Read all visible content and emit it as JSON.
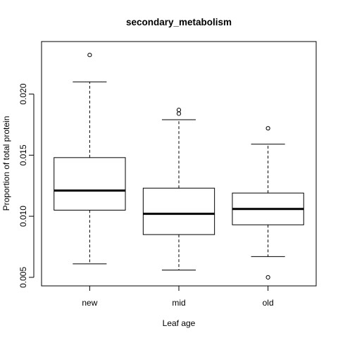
{
  "chart_data": {
    "type": "boxplot",
    "title": "secondary_metabolism",
    "xlabel": "Leaf age",
    "ylabel": "Proportion of total protein",
    "ylim": [
      0.0043,
      0.0243
    ],
    "yticks": [
      "0.005",
      "0.010",
      "0.015",
      "0.020"
    ],
    "grid": false,
    "legend": "none",
    "categories": [
      "new",
      "mid",
      "old"
    ],
    "boxes": [
      {
        "name": "new",
        "whisker_low": 0.0061,
        "q1": 0.0105,
        "median": 0.0121,
        "q3": 0.0148,
        "whisker_high": 0.021,
        "outliers": [
          0.0232
        ]
      },
      {
        "name": "mid",
        "whisker_low": 0.0056,
        "q1": 0.0085,
        "median": 0.0102,
        "q3": 0.0123,
        "whisker_high": 0.0179,
        "outliers": [
          0.0184,
          0.0187
        ]
      },
      {
        "name": "old",
        "whisker_low": 0.0067,
        "q1": 0.0093,
        "median": 0.0106,
        "q3": 0.0119,
        "whisker_high": 0.0159,
        "outliers": [
          0.005,
          0.0172
        ]
      }
    ]
  }
}
